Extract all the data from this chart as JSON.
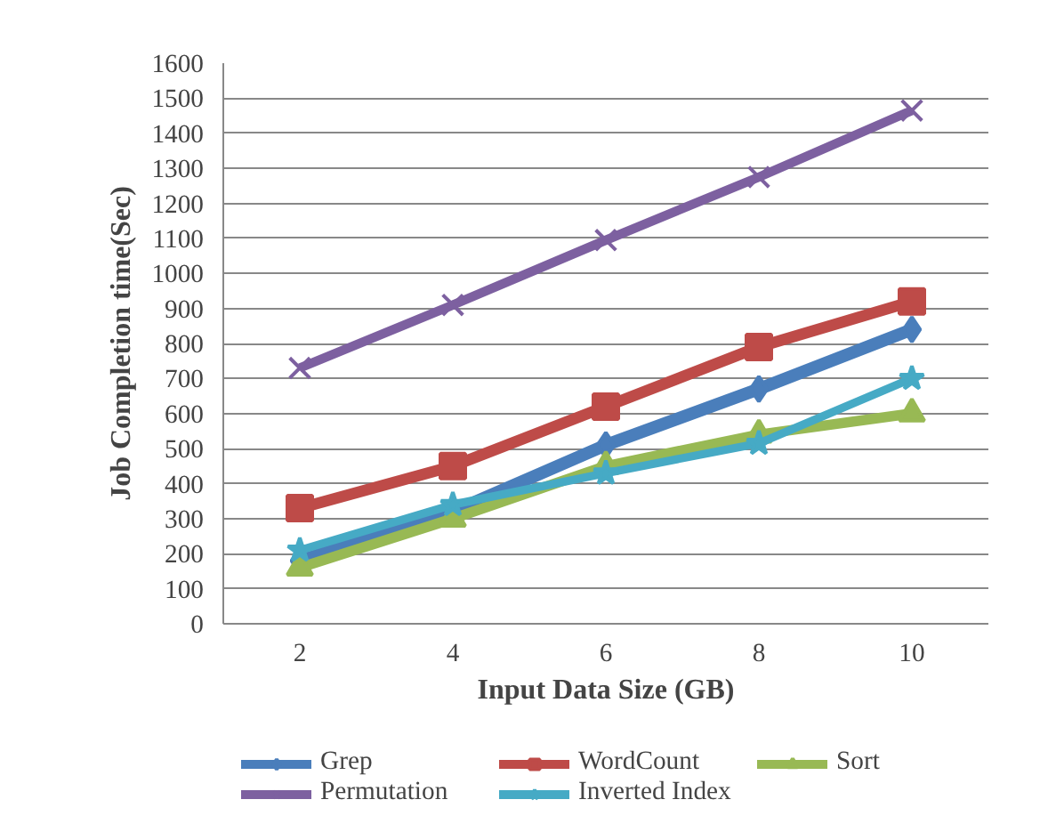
{
  "chart_data": {
    "type": "line",
    "xlabel": "Input Data Size (GB)",
    "ylabel": "Job Completion time(Sec)",
    "categories": [
      "2",
      "4",
      "6",
      "8",
      "10"
    ],
    "ylim": [
      0,
      1600
    ],
    "yticks": [
      0,
      100,
      200,
      300,
      400,
      500,
      600,
      700,
      800,
      900,
      1000,
      1100,
      1200,
      1300,
      1400,
      1500,
      1600
    ],
    "grid": "y",
    "legend": "bottom",
    "line_style": "solid",
    "series": [
      {
        "name": "Grep",
        "color": "#4a7ebb",
        "marker": "diamond",
        "values": [
          180,
          320,
          510,
          670,
          840
        ]
      },
      {
        "name": "WordCount",
        "color": "#be4b48",
        "marker": "square",
        "values": [
          330,
          450,
          620,
          790,
          920
        ]
      },
      {
        "name": "Sort",
        "color": "#98b954",
        "marker": "triangle",
        "values": [
          160,
          300,
          450,
          540,
          600
        ]
      },
      {
        "name": "Permutation",
        "color": "#7d60a0",
        "marker": "cross",
        "values": [
          730,
          910,
          1095,
          1275,
          1465
        ]
      },
      {
        "name": "Inverted Index",
        "color": "#46aac5",
        "marker": "star",
        "values": [
          210,
          340,
          430,
          515,
          700
        ]
      }
    ]
  }
}
